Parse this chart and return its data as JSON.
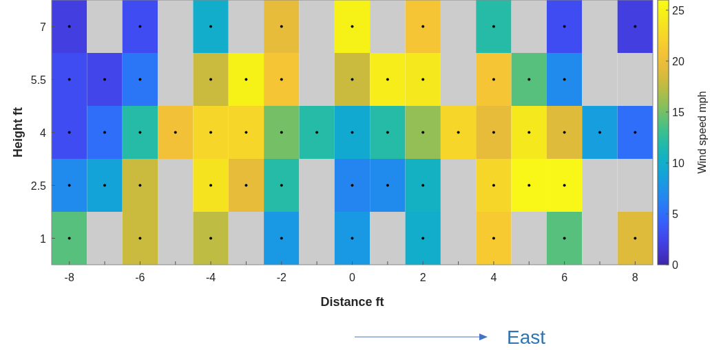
{
  "chart_data": {
    "type": "heatmap",
    "xlabel": "Distance ft",
    "ylabel": "Height ft",
    "clabel": "Wind speed mph",
    "categories": [
      "-8",
      null,
      "-6",
      null,
      "-4",
      null,
      "-2",
      null,
      "0",
      null,
      "2",
      null,
      "4",
      null,
      "6",
      null,
      "8"
    ],
    "y_categories": [
      "7",
      "5.5",
      "4",
      "2.5",
      "1"
    ],
    "cells": [
      [
        2,
        null,
        3,
        null,
        10,
        null,
        19.5,
        null,
        25,
        null,
        21,
        null,
        12,
        null,
        3,
        null,
        2
      ],
      [
        3,
        2.5,
        5.5,
        null,
        18,
        25,
        21,
        null,
        18,
        24.5,
        24,
        null,
        21,
        14,
        7,
        null,
        null
      ],
      [
        3,
        5,
        12,
        20.5,
        22.5,
        22.5,
        15,
        12,
        9.5,
        12,
        16,
        22.5,
        19.5,
        24,
        19,
        8.5,
        5
      ],
      [
        7,
        9,
        18,
        null,
        23.5,
        19.5,
        12,
        null,
        6.5,
        7,
        10.5,
        null,
        22.5,
        25.5,
        25.5,
        null,
        null
      ],
      [
        14,
        null,
        18,
        null,
        17.5,
        null,
        8,
        null,
        8,
        null,
        10,
        null,
        21.5,
        null,
        14,
        null,
        19
      ]
    ],
    "clim": [
      0,
      26
    ],
    "cticks": [
      0,
      5,
      10,
      15,
      20,
      25
    ],
    "marker": "circle",
    "annotations": [
      "East"
    ]
  }
}
